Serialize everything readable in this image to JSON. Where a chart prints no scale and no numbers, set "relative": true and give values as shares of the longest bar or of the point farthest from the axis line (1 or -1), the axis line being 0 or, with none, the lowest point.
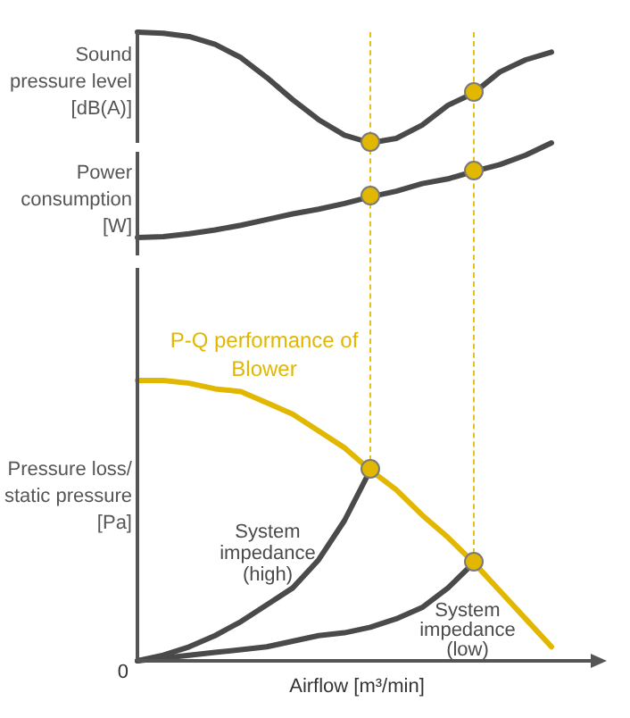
{
  "chart_data": [
    {
      "type": "line",
      "ylabel": "Sound pressure level [dB(A)]",
      "relative": true,
      "categories": [
        null,
        null,
        null,
        null,
        null,
        null,
        null,
        null,
        null,
        null,
        null,
        null,
        null,
        null,
        null,
        null,
        null
      ],
      "series": [
        {
          "color": "#4a4a4a",
          "values": [
            1,
            0.99,
            0.96,
            0.89,
            0.77,
            0.59,
            0.39,
            0.21,
            0.07,
            0,
            0.04,
            0.16,
            0.34,
            0.45,
            0.64,
            0.75,
            0.82
          ]
        }
      ]
    },
    {
      "type": "line",
      "ylabel": "Power consumption [W]",
      "relative": true,
      "categories": [
        null,
        null,
        null,
        null,
        null,
        null,
        null,
        null,
        null,
        null,
        null,
        null,
        null,
        null,
        null,
        null,
        null
      ],
      "series": [
        {
          "color": "#4a4a4a",
          "values": [
            0,
            0.01,
            0.04,
            0.08,
            0.13,
            0.19,
            0.25,
            0.3,
            0.36,
            0.43,
            0.49,
            0.57,
            0.62,
            0.7,
            0.77,
            0.87,
            1
          ]
        }
      ]
    },
    {
      "type": "line",
      "ylabel": "Pressure loss/ static pressure [Pa]",
      "xlabel": "Airflow [m³/min]",
      "relative": true,
      "categories": [
        null,
        null,
        null,
        null,
        null,
        null,
        null,
        null,
        null,
        null,
        null,
        null,
        null,
        null,
        null,
        null,
        null
      ],
      "series": [
        {
          "name": "P-Q performance of Blower",
          "color": "#e2b700",
          "values": [
            1,
            1,
            0.99,
            0.97,
            0.96,
            0.92,
            0.88,
            0.82,
            0.76,
            0.68,
            0.61,
            0.52,
            0.44,
            0.35,
            0.25,
            0.15,
            0.05
          ]
        },
        {
          "name": "System impedance (high)",
          "color": "#4a4a4a",
          "values": [
            0,
            0.02,
            0.05,
            0.09,
            0.14,
            0.2,
            0.26,
            0.36,
            0.5,
            0.68,
            null,
            null,
            null,
            null,
            null,
            null,
            null
          ]
        },
        {
          "name": "System impedance (low)",
          "color": "#4a4a4a",
          "values": [
            0,
            0.01,
            0.02,
            0.03,
            0.04,
            0.05,
            0.07,
            0.09,
            0.1,
            0.12,
            0.15,
            0.19,
            0.26,
            0.35,
            null,
            null,
            null
          ]
        }
      ],
      "annotations": [
        "0"
      ]
    }
  ]
}
